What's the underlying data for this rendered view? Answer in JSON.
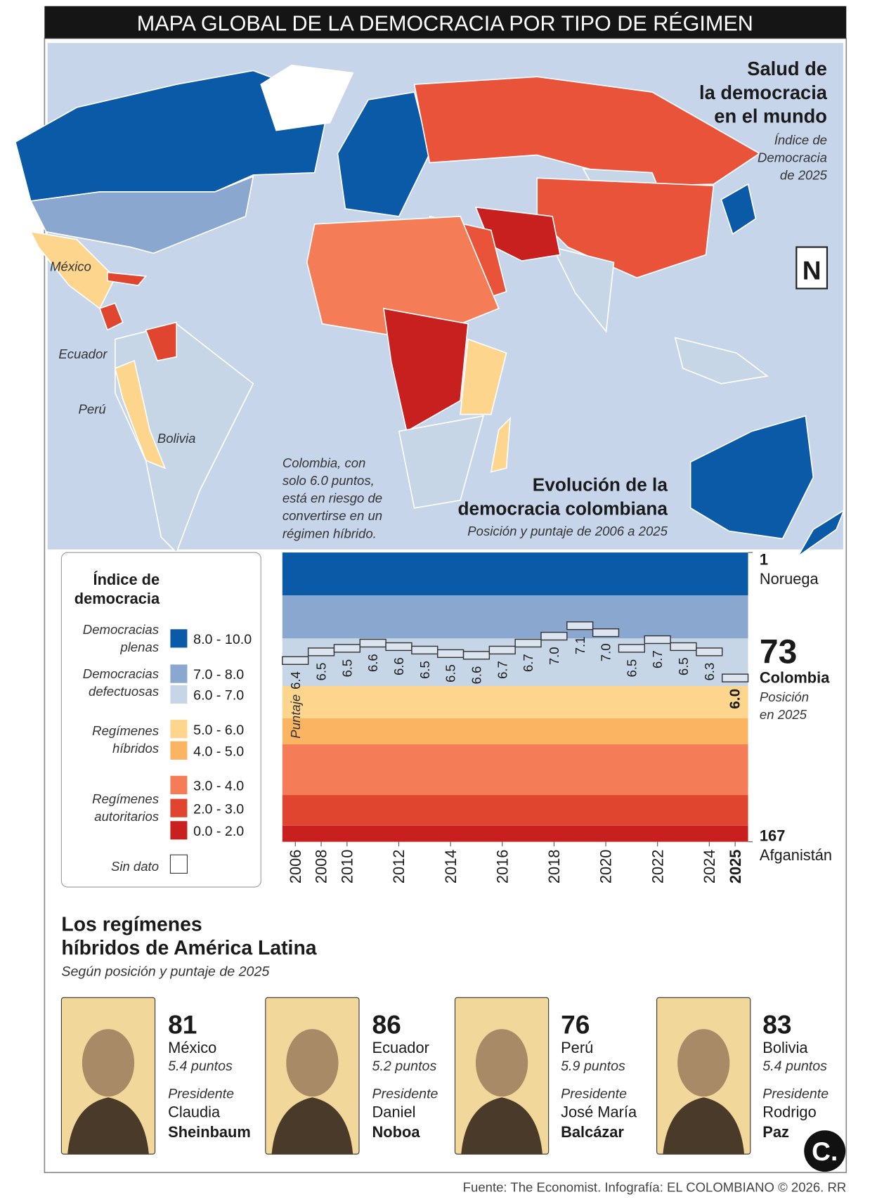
{
  "header": {
    "title": "MAPA GLOBAL DE LA DEMOCRACIA POR TIPO DE RÉGIMEN"
  },
  "map": {
    "title": [
      "Salud de",
      "la democracia",
      "en el mundo"
    ],
    "subtitle": [
      "Índice de",
      "Democracia",
      "de 2025"
    ],
    "north": "N",
    "labels": [
      "México",
      "Ecuador",
      "Perú",
      "Bolivia"
    ],
    "annotation": [
      "Colombia, con",
      "solo 6.0 puntos,",
      "está en riesgo de",
      "convertirse en un",
      "régimen híbrido."
    ]
  },
  "legend": {
    "title": [
      "Índice de",
      "democracia"
    ],
    "groups": [
      {
        "name": [
          "Democracias",
          "plenas"
        ],
        "items": [
          {
            "label": "8.0 - 10.0",
            "color": "#0b5aa8"
          }
        ]
      },
      {
        "name": [
          "Democracias",
          "defectuosas"
        ],
        "items": [
          {
            "label": "7.0 - 8.0",
            "color": "#8aa7cf"
          },
          {
            "label": "6.0 - 7.0",
            "color": "#c6d6e7"
          }
        ]
      },
      {
        "name": [
          "Regímenes",
          "híbridos"
        ],
        "items": [
          {
            "label": "5.0 - 6.0",
            "color": "#fdd58c"
          },
          {
            "label": "4.0 - 5.0",
            "color": "#fbb462"
          }
        ]
      },
      {
        "name": [
          "Regímenes",
          "autoritarios"
        ],
        "items": [
          {
            "label": "3.0 - 4.0",
            "color": "#f47c57"
          },
          {
            "label": "2.0 - 3.0",
            "color": "#e0462f"
          },
          {
            "label": "0.0 - 2.0",
            "color": "#c8201e"
          }
        ]
      }
    ],
    "no_data": "Sin dato"
  },
  "chart_data": {
    "type": "step",
    "title": [
      "Evolución de la",
      "democracia colombiana"
    ],
    "subtitle": "Posición y puntaje de 2006 a 2025",
    "score_prefix": "Puntaje",
    "categories": [
      "2006",
      "2008",
      "2010",
      null,
      "2012",
      null,
      "2014",
      null,
      "2016",
      null,
      "2018",
      null,
      "2020",
      null,
      "2022",
      null,
      "2024",
      "2025"
    ],
    "positions": [
      63,
      58,
      56,
      53,
      55,
      57,
      59,
      60,
      57,
      53,
      49,
      43,
      47,
      56,
      51,
      55,
      58,
      73
    ],
    "values": [
      6.4,
      6.5,
      6.5,
      6.6,
      6.6,
      6.5,
      6.5,
      6.6,
      6.7,
      6.7,
      7.0,
      7.1,
      7.0,
      6.5,
      6.7,
      6.5,
      6.3,
      6.0
    ],
    "value_labels": [
      "6.4",
      "6.5",
      "6.5",
      "6.6",
      "6.6",
      "6.5",
      "6.5",
      "6.6",
      "6.7",
      "6.7",
      "7.0",
      "7.1",
      "7.0",
      "6.5",
      "6.7",
      "6.5",
      "6.3",
      "6.0"
    ],
    "color": "#dbe4ef",
    "ylim": [
      1,
      167
    ],
    "yticks": [
      1,
      167
    ],
    "ytick_names": [
      "Noruega",
      "Afganistán"
    ],
    "highlight": {
      "name": "Colombia",
      "note": [
        "Posición",
        "en 2025"
      ]
    }
  },
  "latam": {
    "title": [
      "Los regímenes",
      "híbridos de América Latina"
    ],
    "subtitle": "Según posición y puntaje de 2025",
    "profiles": [
      {
        "position": "81",
        "country": "México",
        "score": "5.4 puntos",
        "role": "Presidente",
        "first_name": "Claudia",
        "last_name": "Sheinbaum"
      },
      {
        "position": "86",
        "country": "Ecuador",
        "score": "5.2 puntos",
        "role": "Presidente",
        "first_name": "Daniel",
        "last_name": "Noboa"
      },
      {
        "position": "76",
        "country": "Perú",
        "score": "5.9 puntos",
        "role": "Presidente",
        "first_name": "José María",
        "last_name": "Balcázar"
      },
      {
        "position": "83",
        "country": "Bolivia",
        "score": "5.4 puntos",
        "role": "Presidente",
        "first_name": "Rodrigo",
        "last_name": "Paz"
      }
    ]
  },
  "footer": {
    "source": "Fuente: The Economist. Infografía: EL COLOMBIANO © 2026. RR",
    "logo": "C."
  }
}
